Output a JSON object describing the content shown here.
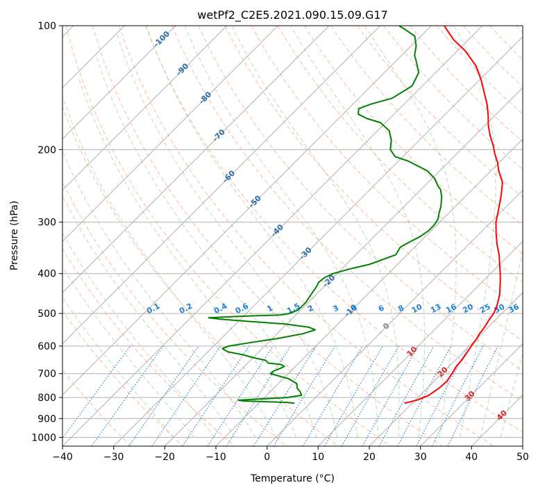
{
  "chart_data": {
    "type": "line",
    "title": "wetPf2_C2E5.2021.090.15.09.G17",
    "xlabel": "Temperature (°C)",
    "ylabel": "Pressure (hPa)",
    "xlim": [
      -40,
      50
    ],
    "ylim": [
      1050,
      100
    ],
    "y_scale": "log",
    "x_ticks": [
      -40,
      -30,
      -20,
      -10,
      0,
      10,
      20,
      30,
      40,
      50
    ],
    "x_tick_labels": [
      "−40",
      "−30",
      "−20",
      "−10",
      "0",
      "10",
      "20",
      "30",
      "40",
      "50"
    ],
    "y_ticks": [
      1000,
      900,
      800,
      700,
      600,
      500,
      400,
      300,
      200,
      100
    ],
    "y_tick_labels": [
      "1000",
      "900",
      "800",
      "700",
      "600",
      "500",
      "400",
      "300",
      "200",
      "100"
    ],
    "grid": true,
    "skew": "45°",
    "series": [
      {
        "color": "#ff0000",
        "points": [
          [
            826,
            18.5
          ],
          [
            810,
            20.5
          ],
          [
            790,
            21.7
          ],
          [
            760,
            22.3
          ],
          [
            730,
            22.5
          ],
          [
            700,
            22.0
          ],
          [
            670,
            21.4
          ],
          [
            650,
            21.3
          ],
          [
            620,
            20.8
          ],
          [
            600,
            20.4
          ],
          [
            580,
            20.1
          ],
          [
            560,
            19.6
          ],
          [
            540,
            19.3
          ],
          [
            520,
            18.8
          ],
          [
            500,
            18.4
          ],
          [
            480,
            17.6
          ],
          [
            450,
            15.9
          ],
          [
            420,
            13.6
          ],
          [
            400,
            11.9
          ],
          [
            380,
            10.0
          ],
          [
            360,
            8.0
          ],
          [
            340,
            5.6
          ],
          [
            320,
            3.3
          ],
          [
            300,
            1.0
          ],
          [
            280,
            -0.9
          ],
          [
            260,
            -3.0
          ],
          [
            240,
            -5.5
          ],
          [
            225,
            -8.5
          ],
          [
            215,
            -10.3
          ],
          [
            205,
            -12.5
          ],
          [
            195,
            -14.6
          ],
          [
            185,
            -17.0
          ],
          [
            175,
            -19.3
          ],
          [
            165,
            -21.4
          ],
          [
            155,
            -23.8
          ],
          [
            145,
            -26.7
          ],
          [
            135,
            -29.8
          ],
          [
            125,
            -33.5
          ],
          [
            115,
            -38.5
          ],
          [
            108,
            -43.0
          ],
          [
            100,
            -47.5
          ]
        ]
      },
      {
        "color": "#008000",
        "points": [
          [
            826,
            -3.0
          ],
          [
            822,
            -4.8
          ],
          [
            816,
            -13.3
          ],
          [
            812,
            -14.6
          ],
          [
            800,
            -5.5
          ],
          [
            790,
            -3.2
          ],
          [
            775,
            -4.1
          ],
          [
            760,
            -5.4
          ],
          [
            740,
            -6.4
          ],
          [
            720,
            -9.0
          ],
          [
            700,
            -13.5
          ],
          [
            690,
            -13.4
          ],
          [
            680,
            -12.6
          ],
          [
            672,
            -12.2
          ],
          [
            665,
            -13.2
          ],
          [
            660,
            -16.0
          ],
          [
            650,
            -17.0
          ],
          [
            640,
            -20.0
          ],
          [
            630,
            -22.5
          ],
          [
            620,
            -26.0
          ],
          [
            612,
            -27.3
          ],
          [
            608,
            -27.8
          ],
          [
            600,
            -27.0
          ],
          [
            590,
            -24.0
          ],
          [
            575,
            -19.0
          ],
          [
            560,
            -15.0
          ],
          [
            548,
            -13.3
          ],
          [
            540,
            -15.0
          ],
          [
            530,
            -20.5
          ],
          [
            522,
            -28.5
          ],
          [
            516,
            -34.0
          ],
          [
            512,
            -36.5
          ],
          [
            508,
            -31.0
          ],
          [
            504,
            -23.0
          ],
          [
            500,
            -21.5
          ],
          [
            490,
            -20.5
          ],
          [
            470,
            -20.5
          ],
          [
            450,
            -21.0
          ],
          [
            430,
            -21.5
          ],
          [
            420,
            -21.9
          ],
          [
            410,
            -21.7
          ],
          [
            400,
            -20.8
          ],
          [
            390,
            -18.5
          ],
          [
            380,
            -15.5
          ],
          [
            360,
            -12.2
          ],
          [
            350,
            -12.6
          ],
          [
            345,
            -12.8
          ],
          [
            335,
            -12.0
          ],
          [
            325,
            -11.0
          ],
          [
            315,
            -10.5
          ],
          [
            305,
            -10.5
          ],
          [
            295,
            -10.9
          ],
          [
            285,
            -11.9
          ],
          [
            275,
            -12.8
          ],
          [
            260,
            -14.6
          ],
          [
            250,
            -16.2
          ],
          [
            245,
            -17.4
          ],
          [
            235,
            -19.5
          ],
          [
            225,
            -22.5
          ],
          [
            218,
            -25.8
          ],
          [
            213,
            -28.2
          ],
          [
            208,
            -31.5
          ],
          [
            200,
            -33.8
          ],
          [
            190,
            -35.4
          ],
          [
            180,
            -37.7
          ],
          [
            172,
            -41.0
          ],
          [
            168,
            -44.5
          ],
          [
            164,
            -47.0
          ],
          [
            159,
            -48.0
          ],
          [
            155,
            -46.5
          ],
          [
            150,
            -43.5
          ],
          [
            140,
            -42.0
          ],
          [
            130,
            -43.3
          ],
          [
            122,
            -46.0
          ],
          [
            118,
            -47.5
          ],
          [
            112,
            -49.0
          ],
          [
            106,
            -51.2
          ],
          [
            102,
            -54.5
          ],
          [
            100,
            -56.3
          ]
        ]
      }
    ],
    "isotherm_labels": [
      "-100",
      "-90",
      "-80",
      "-70",
      "-60",
      "-50",
      "-40",
      "-30",
      "-20",
      "-10",
      "0",
      "10",
      "20",
      "30",
      "40"
    ],
    "mixing_ratio_labels": [
      "0.1",
      "0.2",
      "0.4",
      "0.6",
      "1",
      "1.5",
      "2",
      "3",
      "4",
      "6",
      "8",
      "10",
      "13",
      "16",
      "20",
      "25",
      "30",
      "36"
    ],
    "colors": {
      "temperature": "#ff0000",
      "dewpoint": "#008000",
      "grid": "#b0b0b0",
      "dry_adiabat": "#ffa07a",
      "moist_adiabat": "#9acd9a",
      "mixing_ratio": "#1e7fd7",
      "cold_isotherm_label": "#2a6ea8",
      "warm_isotherm_label": "#d62728",
      "zero_isotherm_label": "#808080"
    }
  }
}
